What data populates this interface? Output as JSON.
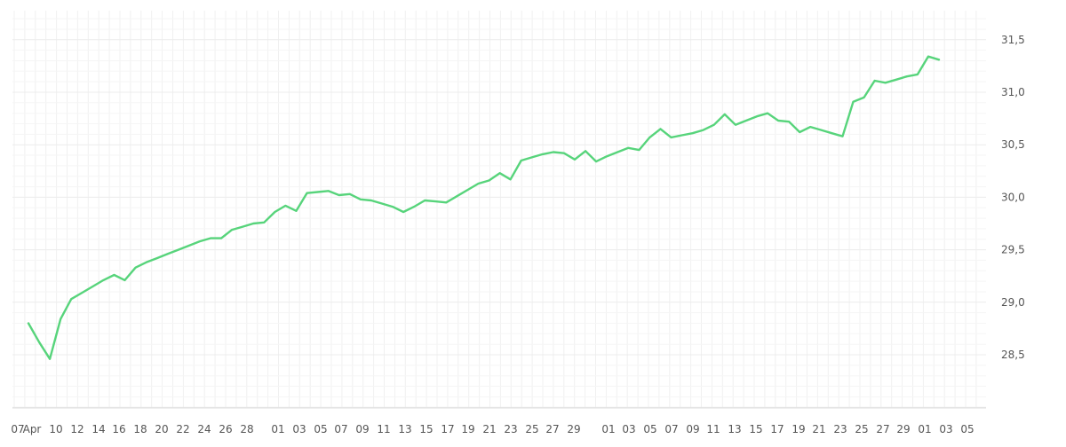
{
  "chart_data": {
    "type": "line",
    "title": "",
    "xlabel": "",
    "ylabel": "",
    "x_tick_labels": [
      "07",
      "Apr",
      "10",
      "12",
      "14",
      "16",
      "18",
      "20",
      "22",
      "24",
      "26",
      "28",
      "01",
      "03",
      "05",
      "07",
      "09",
      "11",
      "13",
      "15",
      "17",
      "19",
      "21",
      "23",
      "25",
      "27",
      "29",
      "01",
      "03",
      "05",
      "07",
      "09",
      "11",
      "13",
      "15",
      "17",
      "19",
      "21",
      "23",
      "25",
      "27",
      "29",
      "01",
      "03",
      "05"
    ],
    "y_tick_labels": [
      "28,5",
      "29,0",
      "29,5",
      "30,0",
      "30,5",
      "31,0",
      "31,5"
    ],
    "ylim": [
      28.0,
      31.8
    ],
    "grid": true,
    "y_axis_position": "right",
    "line_color": "#57d47b",
    "series": [
      {
        "values": [
          28.8,
          28.62,
          28.46,
          28.84,
          29.03,
          29.09,
          29.15,
          29.21,
          29.26,
          29.21,
          29.33,
          29.38,
          29.42,
          29.46,
          29.5,
          29.54,
          29.58,
          29.61,
          29.61,
          29.69,
          29.72,
          29.75,
          29.76,
          29.86,
          29.92,
          29.87,
          30.04,
          30.05,
          30.06,
          30.02,
          30.03,
          29.98,
          29.97,
          29.94,
          29.91,
          29.86,
          29.91,
          29.97,
          29.96,
          29.95,
          30.01,
          30.07,
          30.13,
          30.16,
          30.23,
          30.17,
          30.35,
          30.38,
          30.41,
          30.43,
          30.42,
          30.36,
          30.44,
          30.34,
          30.39,
          30.43,
          30.47,
          30.45,
          30.57,
          30.65,
          30.57,
          30.59,
          30.61,
          30.64,
          30.69,
          30.79,
          30.69,
          30.73,
          30.77,
          30.8,
          30.73,
          30.72,
          30.62,
          30.67,
          30.64,
          30.61,
          30.58,
          30.91,
          30.95,
          31.11,
          31.09,
          31.12,
          31.15,
          31.17,
          31.34,
          31.31
        ]
      }
    ]
  }
}
